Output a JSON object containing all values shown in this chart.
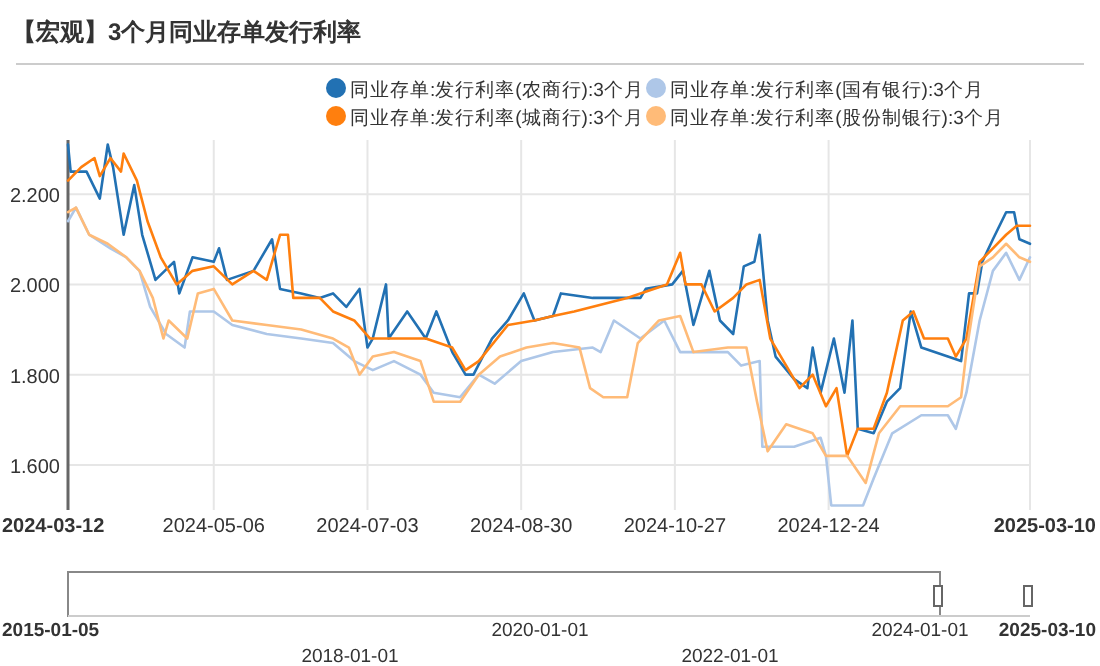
{
  "chart_data": {
    "type": "line",
    "title": "【宏观】3个月同业存单发行利率",
    "xlim": [
      "2024-03-12",
      "2025-03-10"
    ],
    "xticks": [
      {
        "value": "2024-03-12",
        "label": "2024-03-12"
      },
      {
        "value": "2024-05-06",
        "label": "2024-05-06"
      },
      {
        "value": "2024-07-03",
        "label": "2024-07-03"
      },
      {
        "value": "2024-08-30",
        "label": "2024-08-30"
      },
      {
        "value": "2024-10-27",
        "label": "2024-10-27"
      },
      {
        "value": "2024-12-24",
        "label": "2024-12-24"
      },
      {
        "value": "2025-03-10",
        "label": "2025-03-10"
      }
    ],
    "ylim": [
      1.5,
      2.32
    ],
    "yticks": [
      {
        "value": 1.6,
        "label": "1.600"
      },
      {
        "value": 1.8,
        "label": "1.800"
      },
      {
        "value": 2.0,
        "label": "2.000"
      },
      {
        "value": 2.2,
        "label": "2.200"
      }
    ],
    "grid": true,
    "legend": "top",
    "annotations": [
      "2015-01-05",
      "2018-01-01",
      "2020-01-01",
      "2022-01-01",
      "2024-01-01",
      "2025-03-10"
    ],
    "series": [
      {
        "name": "同业存单:发行利率(农商行):3个月",
        "color": "#2271b3",
        "x": [
          "2024-03-12",
          "2024-03-13",
          "2024-03-19",
          "2024-03-24",
          "2024-03-27",
          "2024-03-29",
          "2024-04-02",
          "2024-04-06",
          "2024-04-09",
          "2024-04-14",
          "2024-04-21",
          "2024-04-23",
          "2024-04-28",
          "2024-05-06",
          "2024-05-08",
          "2024-05-11",
          "2024-05-21",
          "2024-05-28",
          "2024-05-31",
          "2024-06-08",
          "2024-06-15",
          "2024-06-20",
          "2024-06-25",
          "2024-06-30",
          "2024-07-03",
          "2024-07-05",
          "2024-07-10",
          "2024-07-11",
          "2024-07-18",
          "2024-07-25",
          "2024-07-29",
          "2024-08-04",
          "2024-08-09",
          "2024-08-12",
          "2024-08-19",
          "2024-08-25",
          "2024-08-31",
          "2024-09-04",
          "2024-09-11",
          "2024-09-14",
          "2024-09-26",
          "2024-10-14",
          "2024-10-16",
          "2024-10-26",
          "2024-10-30",
          "2024-11-03",
          "2024-11-09",
          "2024-11-13",
          "2024-11-18",
          "2024-11-22",
          "2024-11-26",
          "2024-11-28",
          "2024-12-01",
          "2024-12-04",
          "2024-12-11",
          "2024-12-16",
          "2024-12-18",
          "2024-12-21",
          "2024-12-26",
          "2024-12-30",
          "2025-01-02",
          "2025-01-04",
          "2025-01-10",
          "2025-01-15",
          "2025-01-20",
          "2025-01-24",
          "2025-01-28",
          "2025-02-07",
          "2025-02-12",
          "2025-02-15",
          "2025-02-18",
          "2025-02-20",
          "2025-02-24",
          "2025-03-01",
          "2025-03-04",
          "2025-03-06",
          "2025-03-10"
        ],
        "values": [
          2.31,
          2.25,
          2.25,
          2.19,
          2.31,
          2.26,
          2.11,
          2.22,
          2.11,
          2.01,
          2.05,
          1.98,
          2.06,
          2.05,
          2.08,
          2.01,
          2.03,
          2.1,
          1.99,
          1.98,
          1.97,
          1.98,
          1.95,
          1.99,
          1.86,
          1.88,
          2.0,
          1.88,
          1.94,
          1.88,
          1.94,
          1.85,
          1.8,
          1.8,
          1.88,
          1.92,
          1.98,
          1.92,
          1.93,
          1.98,
          1.97,
          1.97,
          1.99,
          2.0,
          2.03,
          1.91,
          2.03,
          1.92,
          1.89,
          2.04,
          2.05,
          2.11,
          1.92,
          1.84,
          1.79,
          1.77,
          1.86,
          1.76,
          1.88,
          1.76,
          1.92,
          1.68,
          1.67,
          1.74,
          1.77,
          1.94,
          1.86,
          1.84,
          1.83,
          1.98,
          1.98,
          2.05,
          2.1,
          2.16,
          2.16,
          2.1,
          2.09
        ]
      },
      {
        "name": "同业存单:发行利率(国有银行):3个月",
        "color": "#aec7e8",
        "x": [
          "2024-03-12",
          "2024-03-15",
          "2024-03-20",
          "2024-03-28",
          "2024-04-03",
          "2024-04-08",
          "2024-04-12",
          "2024-04-18",
          "2024-04-25",
          "2024-04-27",
          "2024-05-06",
          "2024-05-13",
          "2024-05-26",
          "2024-06-08",
          "2024-06-20",
          "2024-06-28",
          "2024-07-05",
          "2024-07-13",
          "2024-07-23",
          "2024-07-28",
          "2024-08-07",
          "2024-08-14",
          "2024-08-20",
          "2024-08-30",
          "2024-09-11",
          "2024-09-26",
          "2024-09-29",
          "2024-10-04",
          "2024-10-14",
          "2024-10-23",
          "2024-10-29",
          "2024-11-16",
          "2024-11-21",
          "2024-11-28",
          "2024-11-29",
          "2024-12-11",
          "2024-12-21",
          "2024-12-23",
          "2024-12-25",
          "2025-01-06",
          "2025-01-10",
          "2025-01-17",
          "2025-01-28",
          "2025-02-07",
          "2025-02-10",
          "2025-02-14",
          "2025-02-19",
          "2025-02-24",
          "2025-03-01",
          "2025-03-06",
          "2025-03-10"
        ],
        "values": [
          2.14,
          2.17,
          2.11,
          2.08,
          2.06,
          2.03,
          1.95,
          1.89,
          1.86,
          1.94,
          1.94,
          1.91,
          1.89,
          1.88,
          1.87,
          1.83,
          1.81,
          1.83,
          1.8,
          1.76,
          1.75,
          1.8,
          1.78,
          1.83,
          1.85,
          1.86,
          1.85,
          1.92,
          1.88,
          1.92,
          1.85,
          1.85,
          1.82,
          1.83,
          1.64,
          1.64,
          1.66,
          1.62,
          1.51,
          1.51,
          1.57,
          1.67,
          1.71,
          1.71,
          1.68,
          1.76,
          1.92,
          2.03,
          2.07,
          2.01,
          2.06
        ]
      },
      {
        "name": "同业存单:发行利率(城商行):3个月",
        "color": "#ff7f0e",
        "x": [
          "2024-03-12",
          "2024-03-17",
          "2024-03-22",
          "2024-03-24",
          "2024-03-28",
          "2024-04-01",
          "2024-04-02",
          "2024-04-07",
          "2024-04-11",
          "2024-04-16",
          "2024-04-22",
          "2024-04-28",
          "2024-05-06",
          "2024-05-13",
          "2024-05-21",
          "2024-05-26",
          "2024-05-31",
          "2024-06-03",
          "2024-06-05",
          "2024-06-15",
          "2024-06-20",
          "2024-06-28",
          "2024-07-04",
          "2024-07-13",
          "2024-07-25",
          "2024-08-04",
          "2024-08-09",
          "2024-08-14",
          "2024-08-25",
          "2024-09-04",
          "2024-09-11",
          "2024-09-19",
          "2024-10-09",
          "2024-10-24",
          "2024-10-29",
          "2024-10-31",
          "2024-11-06",
          "2024-11-11",
          "2024-11-18",
          "2024-11-23",
          "2024-11-28",
          "2024-12-02",
          "2024-12-08",
          "2024-12-13",
          "2024-12-18",
          "2024-12-23",
          "2024-12-27",
          "2024-12-31",
          "2025-01-04",
          "2025-01-10",
          "2025-01-15",
          "2025-01-21",
          "2025-01-25",
          "2025-01-29",
          "2025-02-07",
          "2025-02-10",
          "2025-02-14",
          "2025-02-19",
          "2025-02-24",
          "2025-03-01",
          "2025-03-05",
          "2025-03-10"
        ],
        "values": [
          2.23,
          2.26,
          2.28,
          2.24,
          2.28,
          2.25,
          2.29,
          2.23,
          2.14,
          2.06,
          2.0,
          2.03,
          2.04,
          2.0,
          2.03,
          2.01,
          2.11,
          2.11,
          1.97,
          1.97,
          1.94,
          1.92,
          1.88,
          1.88,
          1.88,
          1.86,
          1.81,
          1.83,
          1.91,
          1.92,
          1.93,
          1.94,
          1.97,
          2.0,
          2.07,
          2.0,
          2.0,
          1.94,
          1.97,
          2.0,
          2.01,
          1.88,
          1.82,
          1.77,
          1.8,
          1.73,
          1.77,
          1.62,
          1.68,
          1.68,
          1.76,
          1.92,
          1.94,
          1.88,
          1.88,
          1.84,
          1.88,
          2.05,
          2.08,
          2.11,
          2.13,
          2.13
        ]
      },
      {
        "name": "同业存单:发行利率(股份制银行):3个月",
        "color": "#ffbb78",
        "x": [
          "2024-03-12",
          "2024-03-15",
          "2024-03-20",
          "2024-03-27",
          "2024-04-03",
          "2024-04-08",
          "2024-04-13",
          "2024-04-17",
          "2024-04-19",
          "2024-04-26",
          "2024-04-30",
          "2024-05-06",
          "2024-05-13",
          "2024-05-26",
          "2024-06-08",
          "2024-06-20",
          "2024-06-26",
          "2024-06-30",
          "2024-07-05",
          "2024-07-13",
          "2024-07-23",
          "2024-07-28",
          "2024-08-07",
          "2024-08-14",
          "2024-08-22",
          "2024-09-01",
          "2024-09-11",
          "2024-09-21",
          "2024-09-25",
          "2024-09-30",
          "2024-10-09",
          "2024-10-13",
          "2024-10-21",
          "2024-10-29",
          "2024-11-03",
          "2024-11-16",
          "2024-11-23",
          "2024-11-27",
          "2024-12-01",
          "2024-12-08",
          "2024-12-18",
          "2024-12-23",
          "2024-12-31",
          "2025-01-07",
          "2025-01-12",
          "2025-01-20",
          "2025-01-28",
          "2025-02-07",
          "2025-02-12",
          "2025-02-14",
          "2025-02-19",
          "2025-02-24",
          "2025-03-01",
          "2025-03-06",
          "2025-03-10"
        ],
        "values": [
          2.16,
          2.17,
          2.11,
          2.09,
          2.06,
          2.03,
          1.97,
          1.88,
          1.92,
          1.88,
          1.98,
          1.99,
          1.92,
          1.91,
          1.9,
          1.88,
          1.86,
          1.8,
          1.84,
          1.85,
          1.83,
          1.74,
          1.74,
          1.8,
          1.84,
          1.86,
          1.87,
          1.86,
          1.77,
          1.75,
          1.75,
          1.87,
          1.92,
          1.93,
          1.85,
          1.86,
          1.86,
          1.74,
          1.63,
          1.69,
          1.67,
          1.62,
          1.62,
          1.56,
          1.67,
          1.73,
          1.73,
          1.73,
          1.75,
          1.85,
          2.04,
          2.06,
          2.09,
          2.06,
          2.05
        ]
      }
    ]
  }
}
